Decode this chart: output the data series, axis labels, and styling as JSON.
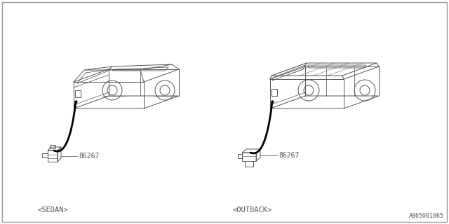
{
  "bg_color": "#ffffff",
  "border_color": "#aaaaaa",
  "part_number": "86267",
  "label_sedan": "<SEDAN>",
  "label_outback": "<OUTBACK>",
  "diagram_id": "A865001065",
  "line_color": "#555555",
  "text_color": "#555555",
  "lw": 0.7
}
